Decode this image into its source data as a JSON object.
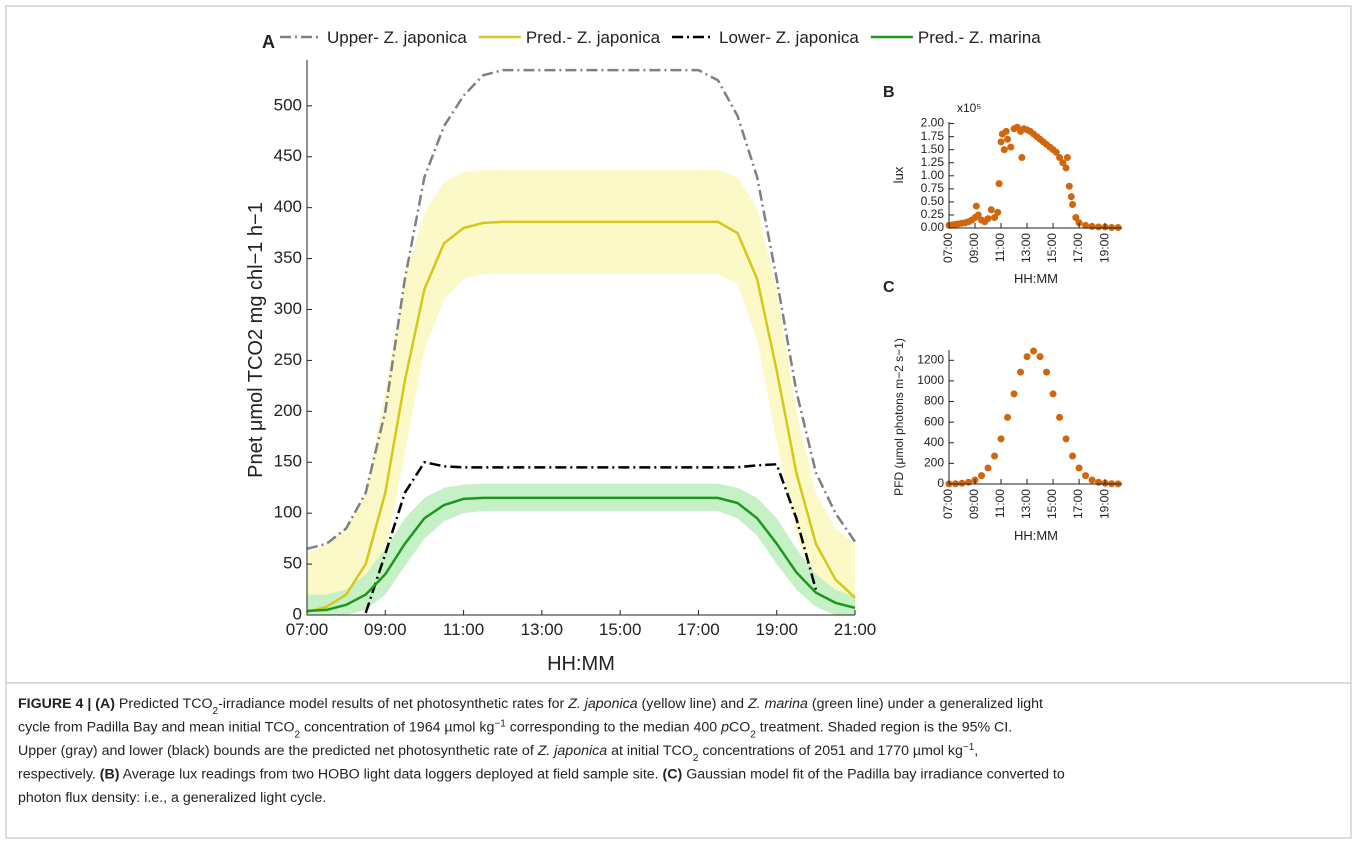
{
  "chart_data": [
    {
      "type": "line",
      "panel_label": "A",
      "x_label": "HH:MM",
      "y_label": "Pnet μmol TCO2 mg chl−1 h−1",
      "x": [
        7,
        7.5,
        8,
        8.5,
        9,
        9.5,
        10,
        10.5,
        11,
        11.5,
        12,
        12.5,
        13,
        13.5,
        14,
        14.5,
        15,
        15.5,
        16,
        16.5,
        17,
        17.5,
        18,
        18.5,
        19,
        19.5,
        20,
        20.5,
        21
      ],
      "xlim": [
        7,
        21
      ],
      "xticks": [
        {
          "value": 7,
          "label": "07:00"
        },
        {
          "value": 9,
          "label": "09:00"
        },
        {
          "value": 11,
          "label": "11:00"
        },
        {
          "value": 13,
          "label": "13:00"
        },
        {
          "value": 15,
          "label": "15:00"
        },
        {
          "value": 17,
          "label": "17:00"
        },
        {
          "value": 19,
          "label": "19:00"
        },
        {
          "value": 21,
          "label": "21:00"
        }
      ],
      "ylim": [
        0,
        545
      ],
      "yticks": [
        0,
        50,
        100,
        150,
        200,
        250,
        300,
        350,
        400,
        450,
        500
      ],
      "series": [
        {
          "name": "Upper- Z. japonica",
          "color": "#808080",
          "style": "dashdot",
          "values": [
            65,
            70,
            85,
            120,
            200,
            330,
            430,
            480,
            510,
            530,
            535,
            535,
            535,
            535,
            535,
            535,
            535,
            535,
            535,
            535,
            535,
            525,
            490,
            430,
            330,
            220,
            140,
            100,
            72
          ]
        },
        {
          "name": "Pred.- Z. japonica",
          "color": "#d4c81a",
          "style": "solid",
          "ci_color": "#fbf9c8",
          "values": [
            3,
            8,
            20,
            50,
            120,
            230,
            320,
            365,
            380,
            385,
            386,
            386,
            386,
            386,
            386,
            386,
            386,
            386,
            386,
            386,
            386,
            386,
            375,
            330,
            240,
            140,
            70,
            35,
            17
          ],
          "ci_upper": [
            60,
            70,
            85,
            120,
            220,
            330,
            395,
            425,
            435,
            437,
            437,
            437,
            437,
            437,
            437,
            437,
            437,
            437,
            437,
            437,
            437,
            437,
            430,
            400,
            320,
            200,
            120,
            85,
            70
          ],
          "ci_lower": [
            0,
            0,
            2,
            15,
            60,
            160,
            260,
            310,
            330,
            335,
            335,
            335,
            335,
            335,
            335,
            335,
            335,
            335,
            335,
            335,
            335,
            335,
            325,
            270,
            170,
            80,
            25,
            5,
            0
          ]
        },
        {
          "name": "Lower- Z. japonica",
          "color": "#000000",
          "style": "dashdot",
          "values": [
            null,
            null,
            null,
            2,
            60,
            120,
            150,
            146,
            145,
            145,
            145,
            145,
            145,
            145,
            145,
            145,
            145,
            145,
            145,
            145,
            145,
            145,
            145,
            147,
            148,
            95,
            25,
            null,
            null
          ]
        },
        {
          "name": "Pred.- Z. marina",
          "color": "#1a9a1a",
          "style": "solid",
          "ci_color": "#c6f0c6",
          "values": [
            4,
            5,
            10,
            20,
            40,
            70,
            95,
            108,
            114,
            115,
            115,
            115,
            115,
            115,
            115,
            115,
            115,
            115,
            115,
            115,
            115,
            115,
            110,
            95,
            70,
            42,
            22,
            12,
            7
          ],
          "ci_upper": [
            20,
            20,
            25,
            40,
            65,
            95,
            115,
            125,
            128,
            129,
            129,
            129,
            129,
            129,
            129,
            129,
            129,
            129,
            129,
            129,
            129,
            129,
            125,
            115,
            95,
            65,
            40,
            25,
            18
          ],
          "ci_lower": [
            0,
            0,
            0,
            5,
            20,
            48,
            75,
            92,
            100,
            102,
            102,
            102,
            102,
            102,
            102,
            102,
            102,
            102,
            102,
            102,
            102,
            102,
            95,
            78,
            50,
            25,
            8,
            0,
            0
          ]
        }
      ]
    },
    {
      "type": "scatter",
      "panel_label": "B",
      "x_label": "HH:MM",
      "y_label": "lux",
      "y_multiplier": "x10⁵",
      "color": "#d0670f",
      "x": [
        7,
        7.25,
        7.5,
        7.75,
        8,
        8.25,
        8.5,
        8.75,
        9,
        9.1,
        9.25,
        9.5,
        9.75,
        10,
        10.25,
        10.5,
        10.75,
        10.85,
        11,
        11.1,
        11.25,
        11.4,
        11.5,
        11.75,
        12,
        12.25,
        12.5,
        12.6,
        12.75,
        13,
        13.25,
        13.5,
        13.75,
        14,
        14.25,
        14.5,
        14.75,
        15,
        15.25,
        15.5,
        15.75,
        16,
        16.1,
        16.25,
        16.4,
        16.5,
        16.75,
        17,
        17.5,
        18,
        18.5,
        19,
        19.5,
        20
      ],
      "values": [
        0.05,
        0.06,
        0.07,
        0.08,
        0.09,
        0.1,
        0.12,
        0.15,
        0.2,
        0.42,
        0.25,
        0.15,
        0.12,
        0.18,
        0.35,
        0.2,
        0.3,
        0.85,
        1.65,
        1.8,
        1.5,
        1.85,
        1.7,
        1.55,
        1.9,
        1.93,
        1.85,
        1.35,
        1.9,
        1.88,
        1.85,
        1.8,
        1.75,
        1.7,
        1.65,
        1.6,
        1.55,
        1.5,
        1.45,
        1.35,
        1.25,
        1.15,
        1.35,
        0.8,
        0.6,
        0.45,
        0.2,
        0.1,
        0.05,
        0.03,
        0.02,
        0.02,
        0.01,
        0.01
      ],
      "xlim": [
        7,
        20.3
      ],
      "xticks": [
        {
          "value": 7,
          "label": "07:00"
        },
        {
          "value": 9,
          "label": "09:00"
        },
        {
          "value": 11,
          "label": "11:00"
        },
        {
          "value": 13,
          "label": "13:00"
        },
        {
          "value": 15,
          "label": "15:00"
        },
        {
          "value": 17,
          "label": "17:00"
        },
        {
          "value": 19,
          "label": "19:00"
        }
      ],
      "ylim": [
        0,
        2.03
      ],
      "yticks": [
        {
          "value": 0,
          "label": "0.00"
        },
        0.25,
        {
          "value": 0.5,
          "label": "0.50"
        },
        0.75,
        {
          "value": 1,
          "label": "1.00"
        },
        1.25,
        {
          "value": 1.5,
          "label": "1.50"
        },
        1.75,
        {
          "value": 2,
          "label": "2.00"
        }
      ]
    },
    {
      "type": "scatter",
      "panel_label": "C",
      "x_label": "HH:MM",
      "y_label": "PFD (μmol photons m−2 s−1)",
      "color": "#d0670f",
      "x": [
        7,
        7.5,
        8,
        8.5,
        9,
        9.5,
        10,
        10.5,
        11,
        11.5,
        12,
        12.5,
        13,
        13.5,
        14,
        14.5,
        15,
        15.5,
        16,
        16.5,
        17,
        17.5,
        18,
        18.5,
        19,
        19.5,
        20
      ],
      "values": [
        1,
        3,
        7,
        17,
        39,
        81,
        155,
        272,
        438,
        646,
        874,
        1085,
        1236,
        1290,
        1236,
        1085,
        874,
        646,
        438,
        272,
        155,
        81,
        39,
        17,
        7,
        3,
        1
      ],
      "xlim": [
        7,
        20.3
      ],
      "xticks": [
        {
          "value": 7,
          "label": "07:00"
        },
        {
          "value": 9,
          "label": "09:00"
        },
        {
          "value": 11,
          "label": "11:00"
        },
        {
          "value": 13,
          "label": "13:00"
        },
        {
          "value": 15,
          "label": "15:00"
        },
        {
          "value": 17,
          "label": "17:00"
        },
        {
          "value": 19,
          "label": "19:00"
        }
      ],
      "ylim": [
        0,
        1300
      ],
      "yticks": [
        0,
        200,
        400,
        600,
        800,
        1000,
        1200
      ]
    }
  ],
  "caption": {
    "lines": [
      [
        {
          "text": "FIGURE 4 | (A)",
          "style": "b"
        },
        {
          "text": " Predicted TCO"
        },
        {
          "text": "2",
          "style": "sub"
        },
        {
          "text": "-irradiance model results of net photosynthetic rates for "
        },
        {
          "text": "Z. japonica",
          "style": "i"
        },
        {
          "text": " (yellow line) and "
        },
        {
          "text": "Z. marina",
          "style": "i"
        },
        {
          "text": " (green line) under a generalized light"
        }
      ],
      [
        {
          "text": "cycle from Padilla Bay and mean initial TCO"
        },
        {
          "text": "2",
          "style": "sub"
        },
        {
          "text": " concentration of 1964 µmol kg"
        },
        {
          "text": "−1",
          "style": "sup"
        },
        {
          "text": " corresponding to the median 400 "
        },
        {
          "text": "p",
          "style": "i"
        },
        {
          "text": "CO"
        },
        {
          "text": "2",
          "style": "sub"
        },
        {
          "text": " treatment. Shaded region is the 95% CI."
        }
      ],
      [
        {
          "text": "Upper (gray) and lower (black) bounds are the predicted net photosynthetic rate of "
        },
        {
          "text": "Z. japonica",
          "style": "i"
        },
        {
          "text": " at initial TCO"
        },
        {
          "text": "2",
          "style": "sub"
        },
        {
          "text": " concentrations of 2051 and 1770 µmol kg"
        },
        {
          "text": "−1",
          "style": "sup"
        },
        {
          "text": ","
        }
      ],
      [
        {
          "text": "respectively. "
        },
        {
          "text": "(B)",
          "style": "b"
        },
        {
          "text": " Average lux readings from two HOBO light data loggers deployed at field sample site. "
        },
        {
          "text": "(C)",
          "style": "b"
        },
        {
          "text": " Gaussian model fit of the Padilla bay irradiance converted to"
        }
      ],
      [
        {
          "text": "photon flux density: i.e., a generalized light cycle."
        }
      ]
    ]
  }
}
